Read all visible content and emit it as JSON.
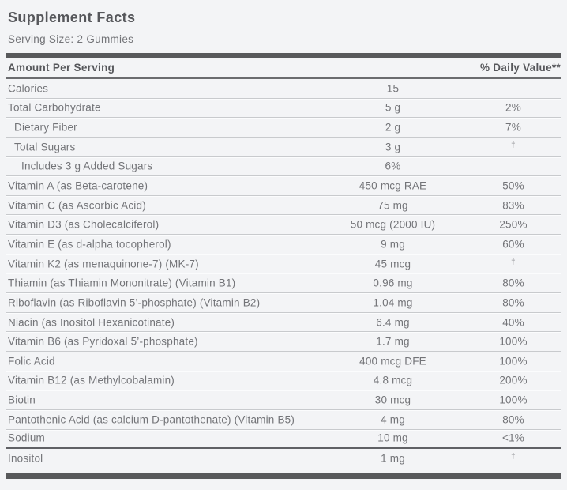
{
  "panel": {
    "title": "Supplement Facts",
    "serving_size": "Serving Size: 2 Gummies"
  },
  "table": {
    "amount_header": "Amount Per Serving",
    "daily_value_header": "% Daily Value**",
    "dagger_symbol": "†",
    "rows": [
      {
        "label": "Calories",
        "amount": "15",
        "dv": "",
        "indent": 0
      },
      {
        "label": "Total Carbohydrate",
        "amount": "5 g",
        "dv": "2%",
        "indent": 0
      },
      {
        "label": "Dietary Fiber",
        "amount": "2 g",
        "dv": "7%",
        "indent": 1
      },
      {
        "label": "Total Sugars",
        "amount": "3 g",
        "dv": "†",
        "indent": 1
      },
      {
        "label": "Includes 3 g Added Sugars",
        "amount": "6%",
        "dv": "",
        "indent": 2
      },
      {
        "label": "Vitamin A (as Beta-carotene)",
        "amount": "450 mcg RAE",
        "dv": "50%",
        "indent": 0
      },
      {
        "label": "Vitamin C (as Ascorbic Acid)",
        "amount": "75 mg",
        "dv": "83%",
        "indent": 0
      },
      {
        "label": "Vitamin D3 (as Cholecalciferol)",
        "amount": "50 mcg (2000 IU)",
        "dv": "250%",
        "indent": 0
      },
      {
        "label": "Vitamin E (as d-alpha tocopherol)",
        "amount": "9 mg",
        "dv": "60%",
        "indent": 0
      },
      {
        "label": "Vitamin K2 (as menaquinone-7) (MK-7)",
        "amount": "45 mcg",
        "dv": "†",
        "indent": 0
      },
      {
        "label": "Thiamin (as Thiamin Mononitrate) (Vitamin B1)",
        "amount": "0.96 mg",
        "dv": "80%",
        "indent": 0
      },
      {
        "label": "Riboflavin (as Riboflavin 5’-phosphate) (Vitamin B2)",
        "amount": "1.04 mg",
        "dv": "80%",
        "indent": 0
      },
      {
        "label": "Niacin (as Inositol Hexanicotinate)",
        "amount": "6.4 mg",
        "dv": "40%",
        "indent": 0
      },
      {
        "label": "Vitamin B6 (as Pyridoxal 5’-phosphate)",
        "amount": "1.7 mg",
        "dv": "100%",
        "indent": 0
      },
      {
        "label": "Folic Acid",
        "amount": "400 mcg DFE",
        "dv": "100%",
        "indent": 0
      },
      {
        "label": "Vitamin B12 (as Methylcobalamin)",
        "amount": "4.8 mcg",
        "dv": "200%",
        "indent": 0
      },
      {
        "label": "Biotin",
        "amount": "30 mcg",
        "dv": "100%",
        "indent": 0
      },
      {
        "label": "Pantothenic Acid (as calcium D-pantothenate) (Vitamin B5)",
        "amount": "4 mg",
        "dv": "80%",
        "indent": 0
      },
      {
        "label": "Sodium",
        "amount": "10 mg",
        "dv": "<1%",
        "indent": 0,
        "thick_bottom": true
      },
      {
        "label": "Inositol",
        "amount": "1 mg",
        "dv": "†",
        "indent": 0,
        "no_border": true
      }
    ]
  },
  "colors": {
    "background": "#f3f4f6",
    "heavy_bar": "#58595b",
    "header_rule": "#6b6c6f",
    "row_separator": "#c8cacd",
    "heading_text": "#56575b",
    "body_text": "#737478"
  }
}
